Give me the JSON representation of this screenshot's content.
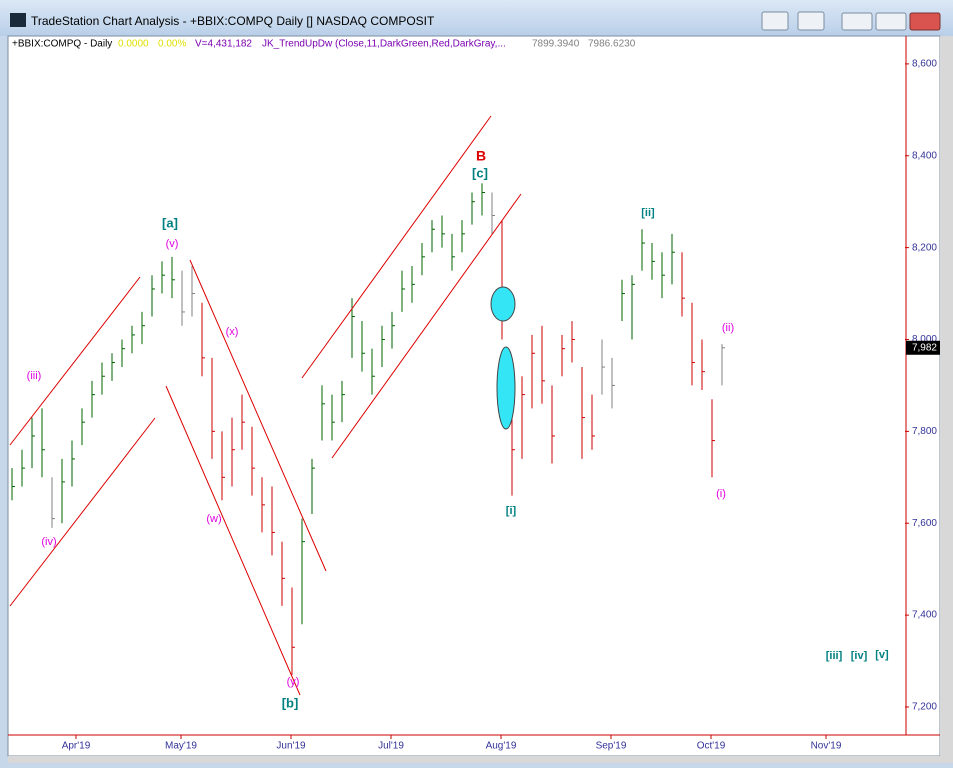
{
  "window_title": "TradeStation Chart Analysis - +BBIX:COMPQ Daily [] NASDAQ COMPOSIT",
  "chart_data": {
    "type": "hlc",
    "header": {
      "symbol": "+BBIX:COMPQ - Daily",
      "change": "0.0000",
      "change_pct": "0.00%",
      "volume": "V=4,431,182",
      "indicator": "JK_TrendUpDw (Close,11,DarkGreen,Red,DarkGray,...",
      "value1": "7899.3940",
      "value2": "7986.6230"
    },
    "categories": [
      null,
      null,
      null,
      null,
      null,
      null,
      null,
      null,
      null,
      null,
      null,
      null,
      null,
      null,
      null,
      null,
      null,
      null,
      null,
      null,
      null,
      null,
      null,
      null,
      null,
      null,
      null,
      null,
      null,
      null,
      null,
      null,
      null,
      null,
      null,
      null,
      null,
      null,
      null,
      null,
      null,
      null,
      null,
      null,
      null,
      null,
      null,
      null,
      null,
      null,
      null,
      null,
      null,
      null,
      null,
      null,
      null,
      null,
      null,
      null,
      null,
      null,
      null,
      null,
      null,
      null,
      null,
      null,
      null,
      null,
      null,
      null
    ],
    "high": [
      7720,
      7760,
      7830,
      7850,
      7700,
      7740,
      7780,
      7850,
      7910,
      7950,
      7970,
      8000,
      8030,
      8060,
      8140,
      8170,
      8180,
      8150,
      8160,
      8080,
      7960,
      7800,
      7830,
      7880,
      7810,
      7700,
      7680,
      7560,
      7460,
      7610,
      7740,
      7900,
      7880,
      7910,
      8090,
      8040,
      7980,
      8030,
      8060,
      8150,
      8160,
      8210,
      8260,
      8270,
      8230,
      8260,
      8320,
      8340,
      8320,
      8260,
      7960,
      7920,
      8010,
      8030,
      7900,
      8010,
      8040,
      7940,
      7880,
      8000,
      7960,
      8130,
      8140,
      8240,
      8210,
      8190,
      8230,
      8190,
      8080,
      8000,
      7870,
      7990
    ],
    "low": [
      7650,
      7680,
      7720,
      7700,
      7590,
      7600,
      7680,
      7770,
      7830,
      7880,
      7910,
      7940,
      7970,
      7990,
      8050,
      8100,
      8090,
      8030,
      8050,
      7920,
      7740,
      7650,
      7680,
      7760,
      7660,
      7580,
      7530,
      7420,
      7270,
      7380,
      7620,
      7780,
      7780,
      7820,
      7960,
      7930,
      7880,
      7940,
      7980,
      8060,
      8080,
      8140,
      8190,
      8200,
      8150,
      8190,
      8250,
      8270,
      8230,
      8000,
      7660,
      7740,
      7850,
      7860,
      7730,
      7920,
      7950,
      7740,
      7760,
      7880,
      7850,
      8040,
      8000,
      8150,
      8130,
      8090,
      8120,
      8050,
      7900,
      7890,
      7700,
      7900
    ],
    "close": [
      7680,
      7720,
      7790,
      7760,
      7610,
      7690,
      7740,
      7820,
      7880,
      7920,
      7950,
      7980,
      8010,
      8030,
      8110,
      8140,
      8130,
      8060,
      8100,
      7960,
      7800,
      7700,
      7760,
      7820,
      7720,
      7640,
      7580,
      7480,
      7330,
      7560,
      7720,
      7860,
      7820,
      7880,
      8050,
      7970,
      7920,
      8000,
      8030,
      8110,
      8120,
      8180,
      8240,
      8230,
      8180,
      8230,
      8300,
      8320,
      8270,
      8050,
      7760,
      7880,
      7970,
      7910,
      7790,
      7980,
      8000,
      7830,
      7790,
      7940,
      7900,
      8100,
      8120,
      8210,
      8170,
      8140,
      8190,
      8090,
      7950,
      7930,
      7780,
      7982
    ],
    "colors": [
      "#006400",
      "#006400",
      "#006400",
      "#006400",
      "#808080",
      "#006400",
      "#006400",
      "#006400",
      "#006400",
      "#006400",
      "#006400",
      "#006400",
      "#006400",
      "#006400",
      "#006400",
      "#006400",
      "#006400",
      "#808080",
      "#808080",
      "#cc0000",
      "#cc0000",
      "#cc0000",
      "#cc0000",
      "#cc0000",
      "#cc0000",
      "#cc0000",
      "#cc0000",
      "#cc0000",
      "#cc0000",
      "#006400",
      "#006400",
      "#006400",
      "#006400",
      "#006400",
      "#006400",
      "#006400",
      "#006400",
      "#006400",
      "#006400",
      "#006400",
      "#006400",
      "#006400",
      "#006400",
      "#006400",
      "#006400",
      "#006400",
      "#006400",
      "#006400",
      "#808080",
      "#cc0000",
      "#cc0000",
      "#cc0000",
      "#cc0000",
      "#cc0000",
      "#cc0000",
      "#cc0000",
      "#cc0000",
      "#cc0000",
      "#cc0000",
      "#808080",
      "#808080",
      "#006400",
      "#006400",
      "#006400",
      "#006400",
      "#006400",
      "#006400",
      "#cc0000",
      "#cc0000",
      "#cc0000",
      "#cc0000",
      "#808080"
    ],
    "xlim": [
      -0.2,
      89.3
    ],
    "xticks": [
      {
        "value": 6.4,
        "label": "Apr'19"
      },
      {
        "value": 16.9,
        "label": "May'19"
      },
      {
        "value": 27.9,
        "label": "Jun'19"
      },
      {
        "value": 37.9,
        "label": "Jul'19"
      },
      {
        "value": 48.9,
        "label": "Aug'19"
      },
      {
        "value": 59.9,
        "label": "Sep'19"
      },
      {
        "value": 69.9,
        "label": "Oct'19"
      },
      {
        "value": 81.4,
        "label": "Nov'19"
      }
    ],
    "ylim": [
      7139,
      8652
    ],
    "yticks": [
      {
        "value": 7200,
        "label": "7,200"
      },
      {
        "value": 7400,
        "label": "7,400"
      },
      {
        "value": 7600,
        "label": "7,600"
      },
      {
        "value": 7800,
        "label": "7,800"
      },
      {
        "value": 8000,
        "label": "8,000"
      },
      {
        "value": 8200,
        "label": "8,200"
      },
      {
        "value": 8400,
        "label": "8,400"
      },
      {
        "value": 8600,
        "label": "8,600"
      }
    ],
    "last_price": {
      "value": 7982,
      "label": "7,982"
    },
    "annotations": [
      "(iii)",
      "(iv)",
      "[a]",
      "(v)",
      "(x)",
      "(w)",
      "(y)",
      "[b]",
      "B",
      "[c]",
      "[i]",
      "[ii]",
      "(ii)",
      "(i)",
      "[iii]",
      "[iv]",
      "[v]"
    ]
  }
}
